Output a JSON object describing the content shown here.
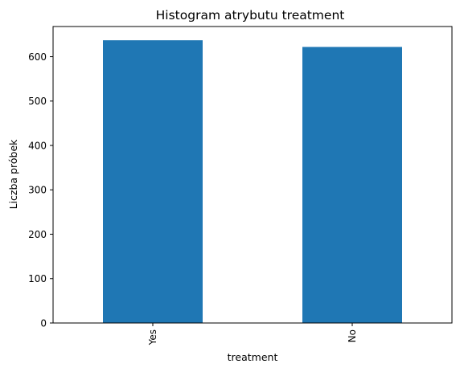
{
  "chart_data": {
    "type": "bar",
    "title": "Histogram atrybutu treatment",
    "xlabel": "treatment",
    "ylabel": "Liczba próbek",
    "categories": [
      "Yes",
      "No"
    ],
    "values": [
      637,
      622
    ],
    "ylim": [
      0,
      668
    ],
    "yticks": [
      0,
      100,
      200,
      300,
      400,
      500,
      600
    ],
    "bar_color": "#1f77b4",
    "grid": false,
    "legend": "none"
  }
}
